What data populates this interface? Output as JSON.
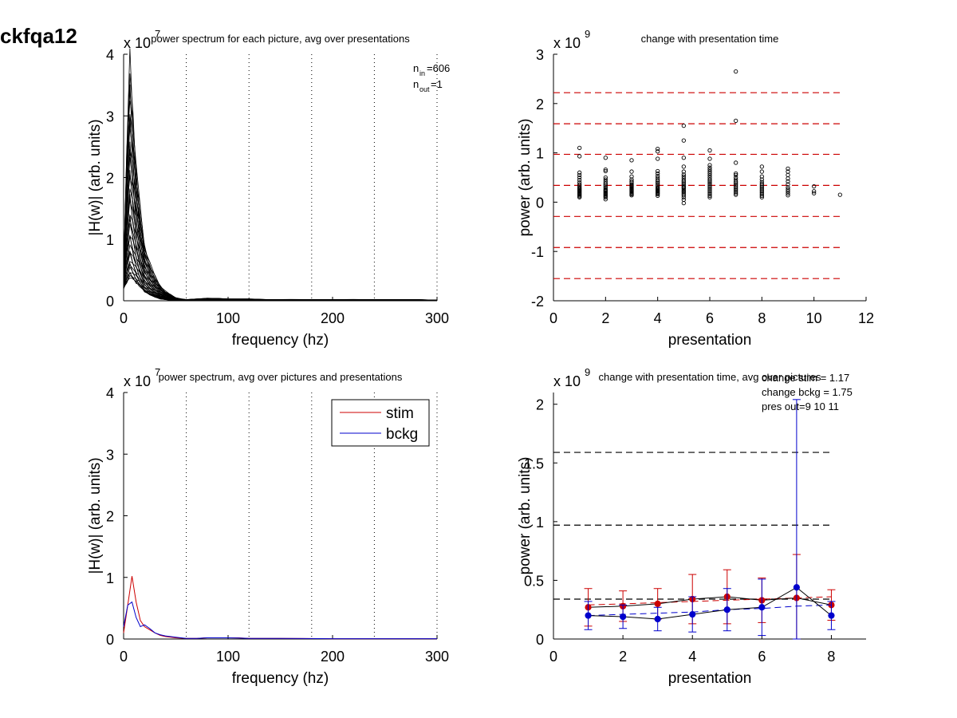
{
  "figure": {
    "label": "ckfqa12"
  },
  "chart_data": [
    {
      "id": "p1",
      "type": "line",
      "title": "power spectrum for each picture, avg over presentations",
      "xlabel": "frequency (hz)",
      "ylabel": "|H(w)| (arb. units)",
      "xlim": [
        0,
        300
      ],
      "ylim": [
        0,
        4
      ],
      "xticks": [
        0,
        100,
        200,
        300
      ],
      "yticks": [
        0,
        1,
        2,
        3,
        4
      ],
      "y_exponent_label": "x 10",
      "y_exponent_power": "7",
      "vlines": [
        60,
        120,
        180,
        240,
        300
      ],
      "annotation": {
        "n_in_base": "n",
        "n_in_sub": "in",
        "n_in_value": "=606",
        "n_out_base": "n",
        "n_out_sub": "out",
        "n_out_value": "=1"
      },
      "series_color": "#000000",
      "curves_drawn": 40,
      "x": [
        0,
        3,
        6,
        9,
        12,
        15,
        20,
        25,
        30,
        35,
        40,
        45,
        50,
        55,
        60,
        70,
        80,
        90,
        100,
        120,
        140,
        160,
        180,
        200,
        220,
        240,
        260,
        280,
        300
      ],
      "envelope_max": [
        0.5,
        2.5,
        3.8,
        3.0,
        2.2,
        1.6,
        0.9,
        0.6,
        0.4,
        0.25,
        0.15,
        0.1,
        0.05,
        0.03,
        0.02,
        0.03,
        0.04,
        0.04,
        0.03,
        0.03,
        0.02,
        0.02,
        0.02,
        0.02,
        0.02,
        0.02,
        0.02,
        0.02,
        0.01
      ],
      "envelope_min": [
        0.2,
        0.3,
        0.4,
        0.35,
        0.3,
        0.25,
        0.15,
        0.1,
        0.06,
        0.03,
        0.02,
        0.01,
        0.005,
        0.003,
        0.003,
        0.005,
        0.005,
        0.005,
        0.004,
        0.004,
        0.003,
        0.003,
        0.003,
        0.003,
        0.003,
        0.003,
        0.003,
        0.003,
        0.002
      ]
    },
    {
      "id": "p2",
      "type": "scatter",
      "title": "change with presentation time",
      "xlabel": "presentation",
      "ylabel": "power (arb. units)",
      "xlim": [
        0,
        12
      ],
      "ylim": [
        -2,
        3
      ],
      "xticks": [
        0,
        2,
        4,
        6,
        8,
        10,
        12
      ],
      "yticks": [
        -2,
        -1,
        0,
        1,
        2,
        3
      ],
      "y_exponent_label": "x 10",
      "y_exponent_power": "9",
      "hlines": [
        2.22,
        1.59,
        0.97,
        0.34,
        -0.29,
        -0.92,
        -1.55
      ],
      "hline_color": "#cc0000",
      "hline_xrange": [
        0,
        11
      ],
      "marker_color": "#000000",
      "columns": [
        {
          "x": 1,
          "ys": [
            1.1,
            0.93,
            0.6,
            0.55,
            0.5,
            0.45,
            0.4,
            0.36,
            0.33,
            0.3,
            0.28,
            0.26,
            0.24,
            0.22,
            0.2,
            0.18,
            0.16,
            0.14,
            0.12,
            0.1
          ]
        },
        {
          "x": 2,
          "ys": [
            0.9,
            0.66,
            0.63,
            0.5,
            0.46,
            0.42,
            0.38,
            0.35,
            0.32,
            0.29,
            0.26,
            0.24,
            0.22,
            0.2,
            0.18,
            0.16,
            0.14,
            0.12,
            0.1,
            0.06
          ]
        },
        {
          "x": 3,
          "ys": [
            0.85,
            0.62,
            0.52,
            0.46,
            0.42,
            0.39,
            0.36,
            0.34,
            0.32,
            0.3,
            0.28,
            0.26,
            0.24,
            0.22,
            0.2,
            0.18,
            0.16,
            0.14
          ]
        },
        {
          "x": 4,
          "ys": [
            1.08,
            1.03,
            0.88,
            0.63,
            0.58,
            0.53,
            0.49,
            0.45,
            0.42,
            0.39,
            0.36,
            0.33,
            0.3,
            0.28,
            0.26,
            0.24,
            0.22,
            0.2,
            0.18,
            0.16,
            0.13
          ]
        },
        {
          "x": 5,
          "ys": [
            1.55,
            1.25,
            0.9,
            0.72,
            0.62,
            0.56,
            0.52,
            0.48,
            0.44,
            0.41,
            0.38,
            0.35,
            0.32,
            0.3,
            0.28,
            0.25,
            0.22,
            0.2,
            0.17,
            0.14,
            0.1,
            0.05,
            -0.02
          ]
        },
        {
          "x": 6,
          "ys": [
            1.05,
            0.88,
            0.75,
            0.7,
            0.66,
            0.62,
            0.58,
            0.54,
            0.5,
            0.46,
            0.43,
            0.4,
            0.37,
            0.34,
            0.31,
            0.28,
            0.25,
            0.22,
            0.19,
            0.16,
            0.13,
            0.1
          ]
        },
        {
          "x": 7,
          "ys": [
            2.65,
            1.65,
            0.8,
            0.58,
            0.55,
            0.5,
            0.46,
            0.42,
            0.39,
            0.36,
            0.33,
            0.3,
            0.27,
            0.24,
            0.21,
            0.18,
            0.15
          ]
        },
        {
          "x": 8,
          "ys": [
            0.72,
            0.62,
            0.52,
            0.46,
            0.41,
            0.37,
            0.34,
            0.31,
            0.28,
            0.25,
            0.22,
            0.19,
            0.16,
            0.13,
            0.1
          ]
        },
        {
          "x": 9,
          "ys": [
            0.68,
            0.62,
            0.55,
            0.48,
            0.42,
            0.36,
            0.3,
            0.26,
            0.22,
            0.18,
            0.14
          ]
        },
        {
          "x": 10,
          "ys": [
            0.32,
            0.22,
            0.18
          ]
        },
        {
          "x": 11,
          "ys": [
            0.15
          ]
        }
      ]
    },
    {
      "id": "p3",
      "type": "line",
      "title": "power spectrum, avg over pictures and presentations",
      "xlabel": "frequency (hz)",
      "ylabel": "|H(w)| (arb. units)",
      "xlim": [
        0,
        300
      ],
      "ylim": [
        0,
        4
      ],
      "xticks": [
        0,
        100,
        200,
        300
      ],
      "yticks": [
        0,
        1,
        2,
        3,
        4
      ],
      "y_exponent_label": "x 10",
      "y_exponent_power": "7",
      "vlines": [
        60,
        120,
        180,
        240,
        300
      ],
      "legend": {
        "position": "top-right"
      },
      "series": [
        {
          "name": "stim",
          "color": "#cc0000",
          "x": [
            0,
            4,
            8,
            12,
            16,
            20,
            25,
            30,
            35,
            40,
            50,
            60,
            70,
            80,
            90,
            100,
            110,
            120,
            150,
            200,
            250,
            300
          ],
          "y": [
            0.1,
            0.55,
            1.02,
            0.6,
            0.3,
            0.2,
            0.15,
            0.1,
            0.06,
            0.04,
            0.02,
            0.01,
            0.01,
            0.02,
            0.02,
            0.02,
            0.02,
            0.01,
            0.01,
            0.005,
            0.005,
            0.005
          ]
        },
        {
          "name": "bckg",
          "color": "#0000cc",
          "x": [
            0,
            4,
            8,
            12,
            16,
            20,
            25,
            30,
            35,
            40,
            50,
            60,
            70,
            80,
            90,
            100,
            110,
            120,
            150,
            200,
            250,
            300
          ],
          "y": [
            0.2,
            0.55,
            0.6,
            0.35,
            0.2,
            0.23,
            0.17,
            0.1,
            0.07,
            0.05,
            0.03,
            0.01,
            0.01,
            0.02,
            0.02,
            0.02,
            0.015,
            0.01,
            0.01,
            0.005,
            0.005,
            0.005
          ]
        }
      ]
    },
    {
      "id": "p4",
      "type": "line",
      "title": "change with presentation time, avg over pictures",
      "xlabel": "presentation",
      "ylabel": "power (arb. units)",
      "xlim": [
        0,
        9
      ],
      "ylim": [
        0,
        2.1
      ],
      "xticks": [
        0,
        2,
        4,
        6,
        8
      ],
      "yticks": [
        0,
        0.5,
        1,
        1.5,
        2
      ],
      "ytick_labels": [
        "0",
        "0.5",
        "1",
        "1.5",
        "2"
      ],
      "y_exponent_label": "x 10",
      "y_exponent_power": "9",
      "hlines": [
        1.59,
        0.97,
        0.34
      ],
      "hline_color": "#000000",
      "hline_xrange": [
        0,
        8
      ],
      "annotations": [
        "change stim = 1.17",
        "change bckg = 1.75",
        "pres out=9 10 11"
      ],
      "series": [
        {
          "name": "stim",
          "color": "#cc0000",
          "x": [
            1,
            2,
            3,
            4,
            5,
            6,
            7,
            8
          ],
          "y": [
            0.27,
            0.28,
            0.3,
            0.34,
            0.36,
            0.33,
            0.35,
            0.29
          ],
          "err": [
            0.16,
            0.13,
            0.13,
            0.21,
            0.23,
            0.19,
            0.37,
            0.13
          ],
          "trend": [
            0.29,
            0.3,
            0.31,
            0.32,
            0.33,
            0.34,
            0.35,
            0.36
          ]
        },
        {
          "name": "bckg",
          "color": "#0000cc",
          "x": [
            1,
            2,
            3,
            4,
            5,
            6,
            7,
            8
          ],
          "y": [
            0.2,
            0.19,
            0.17,
            0.21,
            0.25,
            0.27,
            0.44,
            0.2
          ],
          "err": [
            0.12,
            0.1,
            0.1,
            0.15,
            0.18,
            0.24,
            1.6,
            0.12
          ],
          "trend": [
            0.2,
            0.21,
            0.22,
            0.23,
            0.25,
            0.26,
            0.28,
            0.29
          ]
        }
      ]
    }
  ]
}
